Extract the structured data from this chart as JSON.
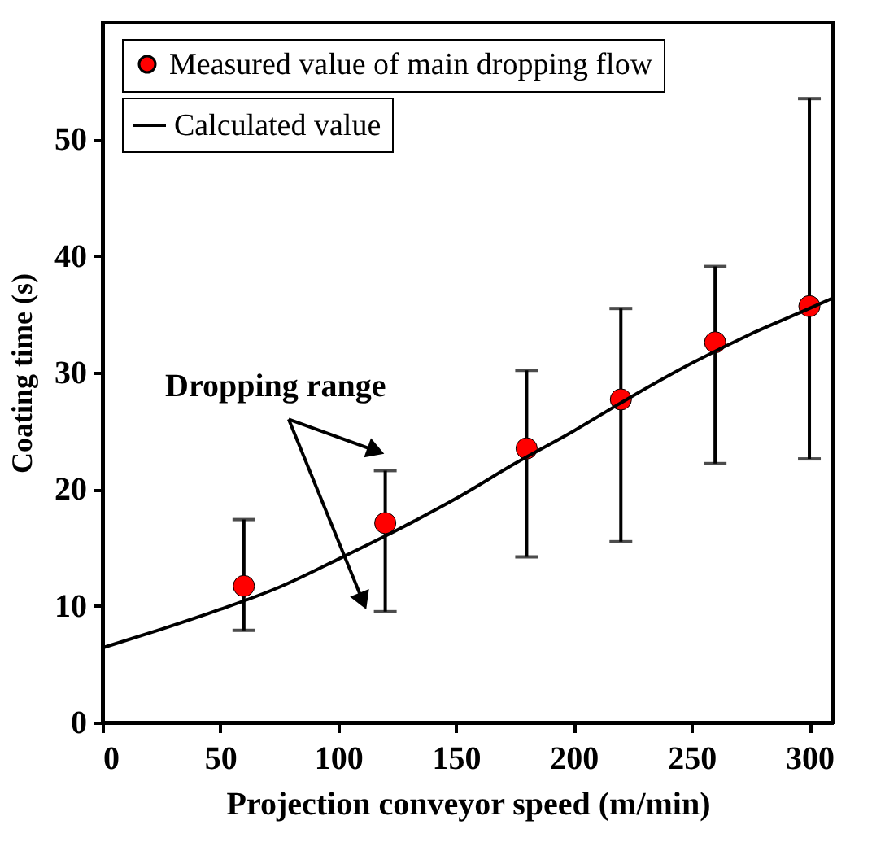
{
  "chart_data": {
    "type": "scatter",
    "xlabel": "Projection conveyor speed (m/min)",
    "ylabel": "Coating time (s)",
    "xlim": [
      0,
      310
    ],
    "xticks": [
      0,
      50,
      100,
      150,
      200,
      250,
      300
    ],
    "ylim": [
      0,
      60
    ],
    "yticks": [
      0,
      10,
      20,
      30,
      40,
      50
    ],
    "legend": "top left",
    "grid": false,
    "marker": "circle",
    "annotations": [
      {
        "text": "Dropping range",
        "x": 120,
        "y": 21.6
      }
    ],
    "series": [
      {
        "name": "Measured value of main dropping flow",
        "color": "#ff0000",
        "x": [
          60,
          120,
          180,
          220,
          260,
          300
        ],
        "values": [
          11.7,
          17.1,
          23.5,
          27.7,
          32.6,
          35.7
        ],
        "errors": [
          [
            7.9,
            17.4
          ],
          [
            9.5,
            21.6
          ],
          [
            14.2,
            30.2
          ],
          [
            15.5,
            35.5
          ],
          [
            22.2,
            39.1
          ],
          [
            22.6,
            53.5
          ]
        ]
      },
      {
        "name": "Calculated value",
        "type": "line",
        "color": "#000000",
        "line_style": "solid",
        "marker": "none",
        "x": [
          0,
          25,
          50,
          75,
          100,
          125,
          150,
          175,
          200,
          225,
          250,
          275,
          300,
          310
        ],
        "values": [
          6.4,
          8.0,
          9.7,
          11.6,
          14.0,
          16.5,
          19.2,
          22.2,
          25.0,
          28.0,
          30.8,
          33.3,
          35.5,
          36.4
        ]
      }
    ]
  }
}
